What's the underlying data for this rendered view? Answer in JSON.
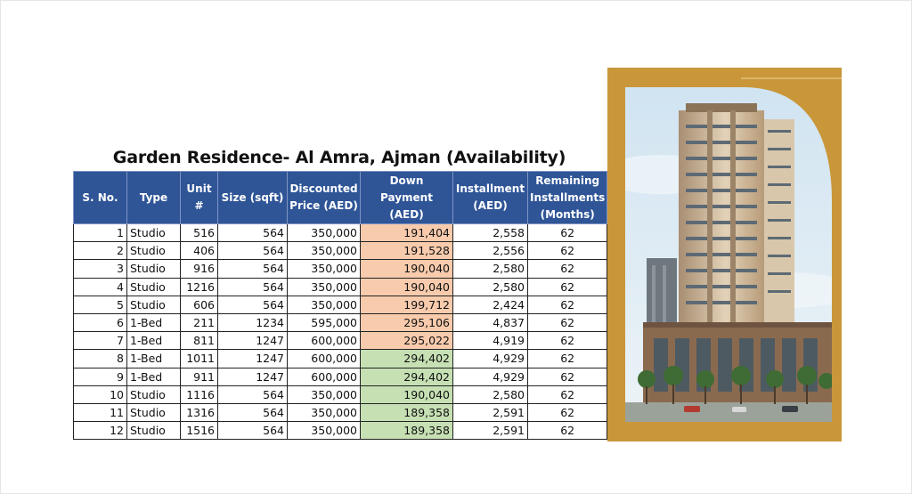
{
  "title": "Garden Residence- Al Amra, Ajman (Availability)",
  "columns": [
    "S. No.",
    "Type",
    "Unit #",
    "Size (sqft)",
    "Discounted Price (AED)",
    "Down Payment (AED)",
    "Installment (AED)",
    "Remaining Installments (Months)"
  ],
  "rows": [
    {
      "sno": "1",
      "type": "Studio",
      "unit": "516",
      "size": "564",
      "price": "350,000",
      "down": "191,404",
      "inst": "2,558",
      "months": "62",
      "shade": "peach"
    },
    {
      "sno": "2",
      "type": "Studio",
      "unit": "406",
      "size": "564",
      "price": "350,000",
      "down": "191,528",
      "inst": "2,556",
      "months": "62",
      "shade": "peach"
    },
    {
      "sno": "3",
      "type": "Studio",
      "unit": "916",
      "size": "564",
      "price": "350,000",
      "down": "190,040",
      "inst": "2,580",
      "months": "62",
      "shade": "peach"
    },
    {
      "sno": "4",
      "type": "Studio",
      "unit": "1216",
      "size": "564",
      "price": "350,000",
      "down": "190,040",
      "inst": "2,580",
      "months": "62",
      "shade": "peach"
    },
    {
      "sno": "5",
      "type": "Studio",
      "unit": "606",
      "size": "564",
      "price": "350,000",
      "down": "199,712",
      "inst": "2,424",
      "months": "62",
      "shade": "peach"
    },
    {
      "sno": "6",
      "type": "1-Bed",
      "unit": "211",
      "size": "1234",
      "price": "595,000",
      "down": "295,106",
      "inst": "4,837",
      "months": "62",
      "shade": "peach"
    },
    {
      "sno": "7",
      "type": "1-Bed",
      "unit": "811",
      "size": "1247",
      "price": "600,000",
      "down": "295,022",
      "inst": "4,919",
      "months": "62",
      "shade": "peach"
    },
    {
      "sno": "8",
      "type": "1-Bed",
      "unit": "1011",
      "size": "1247",
      "price": "600,000",
      "down": "294,402",
      "inst": "4,929",
      "months": "62",
      "shade": "green"
    },
    {
      "sno": "9",
      "type": "1-Bed",
      "unit": "911",
      "size": "1247",
      "price": "600,000",
      "down": "294,402",
      "inst": "4,929",
      "months": "62",
      "shade": "green"
    },
    {
      "sno": "10",
      "type": "Studio",
      "unit": "1116",
      "size": "564",
      "price": "350,000",
      "down": "190,040",
      "inst": "2,580",
      "months": "62",
      "shade": "green"
    },
    {
      "sno": "11",
      "type": "Studio",
      "unit": "1316",
      "size": "564",
      "price": "350,000",
      "down": "189,358",
      "inst": "2,591",
      "months": "62",
      "shade": "green"
    },
    {
      "sno": "12",
      "type": "Studio",
      "unit": "1516",
      "size": "564",
      "price": "350,000",
      "down": "189,358",
      "inst": "2,591",
      "months": "62",
      "shade": "green"
    }
  ],
  "colors": {
    "header": "#2f5597",
    "peach": "#f8cbad",
    "green": "#c6e0b4",
    "frame": "#c9973a"
  },
  "photo_icon": "building-rendering-image"
}
